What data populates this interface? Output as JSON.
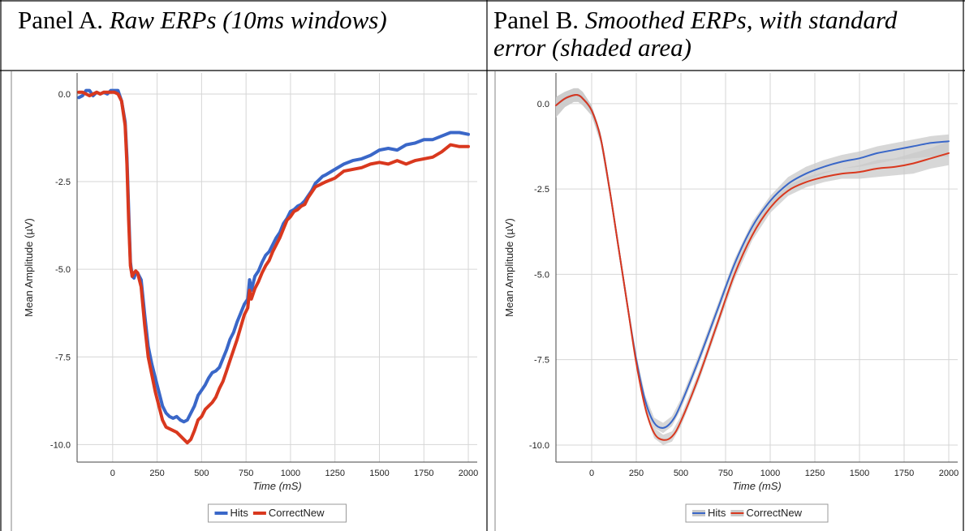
{
  "panels": [
    {
      "label": "Panel A.",
      "caption": "Raw ERPs (10ms windows)"
    },
    {
      "label": "Panel B.",
      "caption": "Smoothed ERPs, with standard error (shaded area)"
    }
  ],
  "chart_data": [
    {
      "type": "line",
      "xlabel": "Time (mS)",
      "ylabel": "Mean Amplitude (µV)",
      "xlim": [
        -200,
        2050
      ],
      "ylim": [
        -10.5,
        0.6
      ],
      "xticks": [
        0,
        250,
        500,
        750,
        1000,
        1250,
        1500,
        1750,
        2000
      ],
      "yticks": [
        0.0,
        -2.5,
        -5.0,
        -7.5,
        -10.0
      ],
      "ytick_labels": [
        "0.0",
        "-2.5",
        "-5.0",
        "-7.5",
        "-10.0"
      ],
      "grid": true,
      "legend": "bottom",
      "series": [
        {
          "name": "Hits",
          "color": "#3a67c8",
          "x": [
            -190,
            -170,
            -150,
            -130,
            -110,
            -90,
            -70,
            -50,
            -30,
            -10,
            10,
            30,
            50,
            70,
            80,
            90,
            100,
            110,
            120,
            130,
            140,
            160,
            180,
            200,
            220,
            240,
            260,
            280,
            300,
            320,
            340,
            360,
            380,
            400,
            420,
            440,
            460,
            480,
            500,
            520,
            540,
            560,
            580,
            600,
            620,
            640,
            660,
            680,
            700,
            720,
            740,
            760,
            770,
            780,
            800,
            820,
            840,
            860,
            880,
            900,
            920,
            940,
            960,
            980,
            1000,
            1020,
            1040,
            1060,
            1080,
            1100,
            1120,
            1140,
            1160,
            1180,
            1200,
            1250,
            1300,
            1350,
            1400,
            1450,
            1500,
            1550,
            1600,
            1650,
            1700,
            1750,
            1800,
            1850,
            1900,
            1950,
            2000
          ],
          "y": [
            -0.1,
            -0.05,
            0.1,
            0.1,
            -0.05,
            0.05,
            0.0,
            0.05,
            0.0,
            0.1,
            0.1,
            0.1,
            -0.2,
            -0.8,
            -1.8,
            -3.3,
            -4.8,
            -5.2,
            -5.25,
            -5.1,
            -5.1,
            -5.3,
            -6.3,
            -7.2,
            -7.7,
            -8.1,
            -8.5,
            -8.9,
            -9.1,
            -9.2,
            -9.25,
            -9.2,
            -9.3,
            -9.35,
            -9.3,
            -9.1,
            -8.9,
            -8.6,
            -8.45,
            -8.3,
            -8.1,
            -7.95,
            -7.9,
            -7.8,
            -7.55,
            -7.3,
            -7.0,
            -6.8,
            -6.5,
            -6.25,
            -6.0,
            -5.85,
            -5.3,
            -5.6,
            -5.2,
            -5.05,
            -4.8,
            -4.6,
            -4.5,
            -4.3,
            -4.1,
            -3.95,
            -3.7,
            -3.55,
            -3.35,
            -3.3,
            -3.2,
            -3.15,
            -3.05,
            -2.9,
            -2.75,
            -2.55,
            -2.45,
            -2.35,
            -2.3,
            -2.15,
            -2.0,
            -1.9,
            -1.85,
            -1.75,
            -1.6,
            -1.55,
            -1.6,
            -1.45,
            -1.4,
            -1.3,
            -1.3,
            -1.2,
            -1.1,
            -1.1,
            -1.15
          ]
        },
        {
          "name": "CorrectNew",
          "color": "#d9381e",
          "x": [
            -190,
            -170,
            -150,
            -130,
            -110,
            -90,
            -70,
            -50,
            -30,
            -10,
            10,
            30,
            50,
            70,
            80,
            90,
            100,
            110,
            120,
            130,
            140,
            160,
            180,
            200,
            220,
            240,
            260,
            280,
            300,
            320,
            340,
            360,
            380,
            400,
            420,
            440,
            460,
            480,
            500,
            520,
            540,
            560,
            580,
            600,
            620,
            640,
            660,
            680,
            700,
            720,
            740,
            760,
            770,
            780,
            800,
            820,
            840,
            860,
            880,
            900,
            920,
            940,
            960,
            980,
            1000,
            1020,
            1040,
            1060,
            1080,
            1100,
            1120,
            1140,
            1160,
            1180,
            1200,
            1250,
            1300,
            1350,
            1400,
            1450,
            1500,
            1550,
            1600,
            1650,
            1700,
            1750,
            1800,
            1850,
            1900,
            1950,
            2000
          ],
          "y": [
            0.05,
            0.05,
            0.0,
            -0.05,
            0.0,
            0.05,
            0.0,
            0.05,
            0.05,
            0.05,
            0.05,
            0.0,
            -0.2,
            -0.9,
            -2.0,
            -3.6,
            -4.9,
            -5.2,
            -5.1,
            -5.05,
            -5.1,
            -5.5,
            -6.6,
            -7.5,
            -8.0,
            -8.5,
            -8.9,
            -9.3,
            -9.5,
            -9.55,
            -9.6,
            -9.65,
            -9.75,
            -9.85,
            -9.95,
            -9.85,
            -9.6,
            -9.3,
            -9.2,
            -9.0,
            -8.9,
            -8.8,
            -8.65,
            -8.4,
            -8.2,
            -7.9,
            -7.6,
            -7.3,
            -7.0,
            -6.65,
            -6.3,
            -6.1,
            -5.6,
            -5.85,
            -5.55,
            -5.35,
            -5.1,
            -4.9,
            -4.75,
            -4.5,
            -4.3,
            -4.1,
            -3.85,
            -3.6,
            -3.5,
            -3.35,
            -3.3,
            -3.2,
            -3.15,
            -2.95,
            -2.8,
            -2.65,
            -2.6,
            -2.55,
            -2.5,
            -2.4,
            -2.2,
            -2.15,
            -2.1,
            -2.0,
            -1.95,
            -2.0,
            -1.9,
            -2.0,
            -1.9,
            -1.85,
            -1.8,
            -1.65,
            -1.45,
            -1.5,
            -1.5
          ]
        }
      ]
    },
    {
      "type": "line",
      "xlabel": "Time (mS)",
      "ylabel": "Mean Amplitude (µV)",
      "xlim": [
        -200,
        2050
      ],
      "ylim": [
        -10.5,
        0.9
      ],
      "xticks": [
        0,
        250,
        500,
        750,
        1000,
        1250,
        1500,
        1750,
        2000
      ],
      "yticks": [
        0.0,
        -2.5,
        -5.0,
        -7.5,
        -10.0
      ],
      "ytick_labels": [
        "0.0",
        "-2.5",
        "-5.0",
        "-7.5",
        "-10.0"
      ],
      "grid": true,
      "legend": "bottom",
      "band_color": "#c9c9c9",
      "series": [
        {
          "name": "Hits",
          "color": "#3a67c8",
          "x": [
            -200,
            -150,
            -100,
            -75,
            -50,
            0,
            50,
            100,
            150,
            200,
            250,
            300,
            350,
            400,
            450,
            500,
            600,
            700,
            800,
            900,
            1000,
            1100,
            1200,
            1300,
            1400,
            1500,
            1600,
            1700,
            1800,
            1900,
            2000
          ],
          "y": [
            -0.05,
            0.15,
            0.25,
            0.25,
            0.15,
            -0.2,
            -1.0,
            -2.5,
            -4.2,
            -5.9,
            -7.5,
            -8.7,
            -9.35,
            -9.5,
            -9.3,
            -8.8,
            -7.5,
            -6.1,
            -4.7,
            -3.6,
            -2.85,
            -2.35,
            -2.05,
            -1.85,
            -1.7,
            -1.6,
            -1.45,
            -1.35,
            -1.25,
            -1.15,
            -1.1
          ],
          "se_lower": [
            -0.4,
            -0.1,
            0.05,
            0.05,
            -0.05,
            -0.35,
            -1.15,
            -2.65,
            -4.35,
            -6.05,
            -7.65,
            -8.85,
            -9.5,
            -9.65,
            -9.45,
            -8.95,
            -7.65,
            -6.25,
            -4.85,
            -3.75,
            -3.0,
            -2.55,
            -2.25,
            -2.05,
            -1.9,
            -1.85,
            -1.75,
            -1.65,
            -1.6,
            -1.55,
            -1.55
          ],
          "se_upper": [
            0.2,
            0.35,
            0.45,
            0.45,
            0.35,
            -0.05,
            -0.85,
            -2.35,
            -4.05,
            -5.75,
            -7.35,
            -8.55,
            -9.2,
            -9.35,
            -9.15,
            -8.65,
            -7.35,
            -5.95,
            -4.55,
            -3.45,
            -2.7,
            -2.15,
            -1.85,
            -1.65,
            -1.5,
            -1.4,
            -1.25,
            -1.15,
            -1.05,
            -0.95,
            -0.9
          ]
        },
        {
          "name": "CorrectNew",
          "color": "#d9381e",
          "x": [
            -200,
            -150,
            -100,
            -75,
            -50,
            0,
            50,
            100,
            150,
            200,
            250,
            300,
            350,
            400,
            450,
            500,
            600,
            700,
            800,
            900,
            1000,
            1100,
            1200,
            1300,
            1400,
            1500,
            1600,
            1700,
            1800,
            1900,
            2000
          ],
          "y": [
            -0.05,
            0.15,
            0.25,
            0.25,
            0.15,
            -0.2,
            -1.0,
            -2.5,
            -4.2,
            -5.9,
            -7.6,
            -8.9,
            -9.65,
            -9.85,
            -9.75,
            -9.3,
            -8.0,
            -6.5,
            -5.0,
            -3.85,
            -3.05,
            -2.55,
            -2.3,
            -2.15,
            -2.05,
            -2.0,
            -1.9,
            -1.85,
            -1.75,
            -1.6,
            -1.45
          ],
          "se_lower": [
            -0.4,
            -0.1,
            0.05,
            0.05,
            -0.05,
            -0.35,
            -1.15,
            -2.65,
            -4.35,
            -6.05,
            -7.75,
            -9.05,
            -9.8,
            -10.0,
            -9.9,
            -9.45,
            -8.15,
            -6.65,
            -5.15,
            -4.0,
            -3.2,
            -2.7,
            -2.45,
            -2.3,
            -2.2,
            -2.2,
            -2.15,
            -2.1,
            -2.05,
            -1.9,
            -1.8
          ],
          "se_upper": [
            0.2,
            0.35,
            0.45,
            0.45,
            0.35,
            -0.05,
            -0.85,
            -2.35,
            -4.05,
            -5.75,
            -7.45,
            -8.75,
            -9.5,
            -9.7,
            -9.6,
            -9.15,
            -7.85,
            -6.35,
            -4.85,
            -3.7,
            -2.9,
            -2.4,
            -2.15,
            -2.0,
            -1.9,
            -1.8,
            -1.65,
            -1.6,
            -1.45,
            -1.3,
            -1.1
          ]
        }
      ]
    }
  ]
}
